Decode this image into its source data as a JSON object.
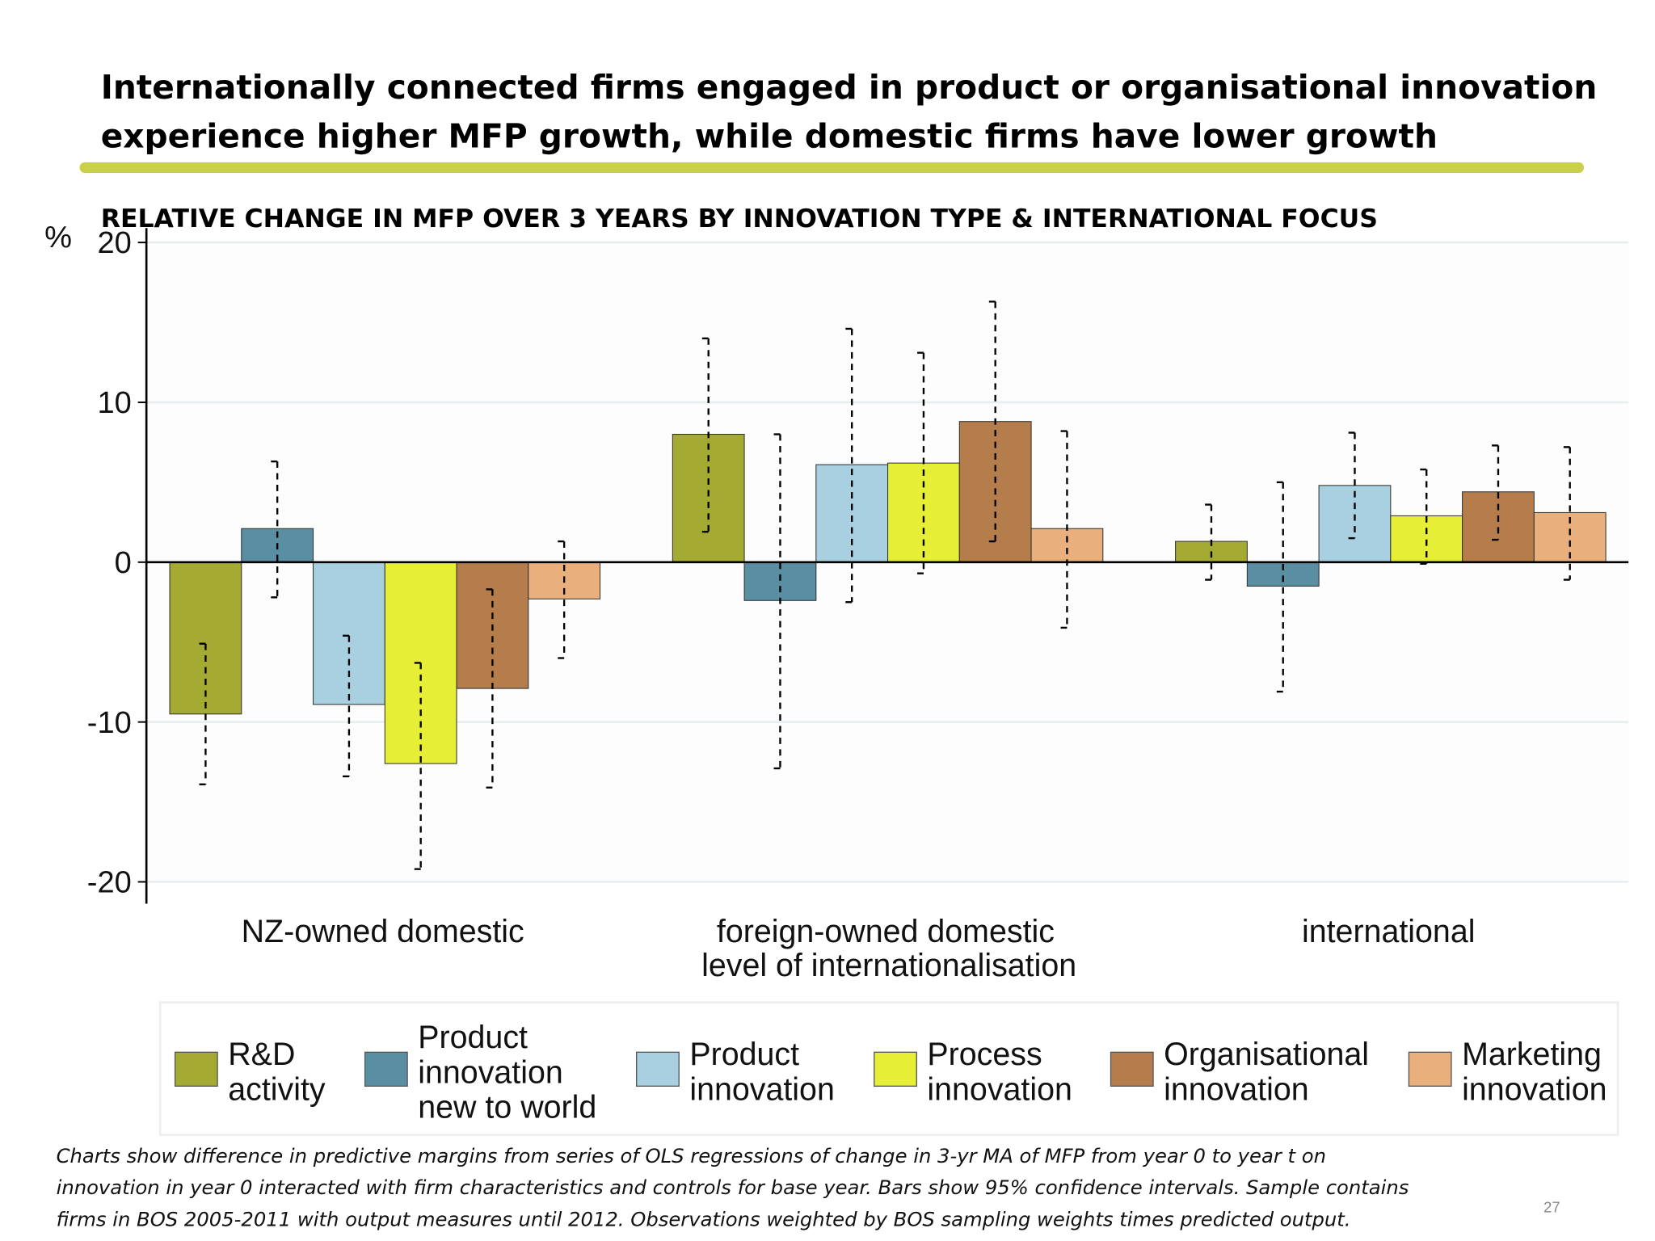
{
  "slide": {
    "title_lines": [
      "Internationally connected firms engaged in product or organisational innovation",
      "experience higher MFP growth, while domestic firms have lower growth"
    ],
    "accent_color": "#c9d14a",
    "footnote_lines": [
      "Charts show difference in predictive margins from series of OLS regressions of change in 3-yr MA of MFP from year 0 to year t on",
      "innovation in year 0 interacted with firm characteristics and controls for base year. Bars show 95% confidence intervals. Sample contains",
      "firms in BOS 2005-2011 with output measures until 2012. Observations weighted by BOS sampling weights times predicted output."
    ],
    "page_number": "27"
  },
  "chart_data": {
    "type": "bar",
    "title": "RELATIVE CHANGE IN MFP OVER 3 YEARS BY INNOVATION TYPE & INTERNATIONAL FOCUS",
    "ylabel": "%",
    "xlabel": "level of internationalisation",
    "ylim": [
      -20,
      20
    ],
    "yticks": [
      20,
      10,
      0,
      -10,
      -20
    ],
    "yticklabels": [
      "20",
      "10",
      "0",
      "-10",
      "-20"
    ],
    "grid": true,
    "legend_placement": "bottom",
    "categories": [
      "NZ-owned domestic",
      "foreign-owned domestic",
      "international"
    ],
    "series": [
      {
        "name": "R&D activity",
        "legend_lines": [
          "R&D",
          "activity"
        ],
        "color": "#a5ab32",
        "values": [
          -9.5,
          8.0,
          1.3
        ],
        "ci_low": [
          -13.9,
          1.9,
          -1.1
        ],
        "ci_high": [
          -5.1,
          14.0,
          3.6
        ]
      },
      {
        "name": "Product innovation new to world",
        "legend_lines": [
          "Product",
          "innovation",
          "new to world"
        ],
        "color": "#5a8fa3",
        "values": [
          2.1,
          -2.4,
          -1.5
        ],
        "ci_low": [
          -2.2,
          -12.9,
          -8.1
        ],
        "ci_high": [
          6.3,
          8.0,
          5.0
        ]
      },
      {
        "name": "Product innovation",
        "legend_lines": [
          "Product",
          "innovation"
        ],
        "color": "#a8d0e0",
        "values": [
          -8.9,
          6.1,
          4.8
        ],
        "ci_low": [
          -13.4,
          -2.5,
          1.5
        ],
        "ci_high": [
          -4.6,
          14.6,
          8.1
        ]
      },
      {
        "name": "Process innovation",
        "legend_lines": [
          "Process",
          "innovation"
        ],
        "color": "#e6ee35",
        "values": [
          -12.6,
          6.2,
          2.9
        ],
        "ci_low": [
          -19.2,
          -0.7,
          -0.1
        ],
        "ci_high": [
          -6.3,
          13.1,
          5.8
        ]
      },
      {
        "name": "Organisational innovation",
        "legend_lines": [
          "Organisational",
          "innovation"
        ],
        "color": "#b57d4c",
        "values": [
          -7.9,
          8.8,
          4.4
        ],
        "ci_low": [
          -14.1,
          1.3,
          1.4
        ],
        "ci_high": [
          -1.7,
          16.3,
          7.3
        ]
      },
      {
        "name": "Marketing innovation",
        "legend_lines": [
          "Marketing",
          "innovation"
        ],
        "color": "#e9b07e",
        "values": [
          -2.3,
          2.1,
          3.1
        ],
        "ci_low": [
          -6.0,
          -4.1,
          -1.1
        ],
        "ci_high": [
          1.3,
          8.2,
          7.2
        ]
      }
    ]
  }
}
